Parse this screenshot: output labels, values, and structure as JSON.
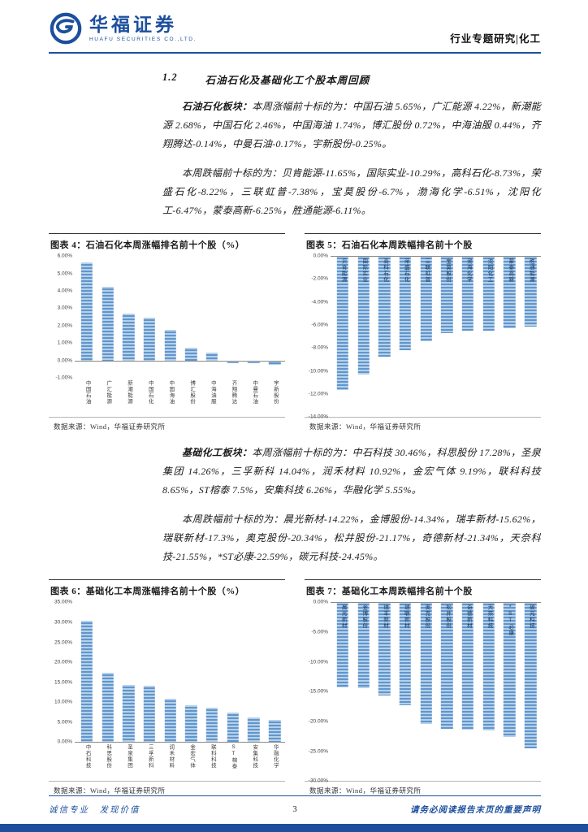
{
  "colors": {
    "brand_blue": "#1d4f9e",
    "bar_light": "#b7d0e8",
    "bar_dark": "#6096cd"
  },
  "header": {
    "brand_cn": "华福证券",
    "brand_en": "HUAFU SECURITIES CO.,LTD.",
    "doc_type": "行业专题研究|化工"
  },
  "section": {
    "number": "1.2",
    "title": "石油石化及基础化工个股本周回顾"
  },
  "paragraphs": {
    "p1_lead": "石油石化板块：",
    "p1_text": "本周涨幅前十标的为：中国石油 5.65%，广汇能源 4.22%，新潮能源 2.68%，中国石化 2.46%，中国海油 1.74%，博汇股份 0.72%，中海油服 0.44%，齐翔腾达-0.14%，中曼石油-0.17%，宇新股份-0.25%。",
    "p2_text": "本周跌幅前十标的为：贝肯能源-11.65%，国际实业-10.29%，高科石化-8.73%，荣盛石化-8.22%，三联虹普-7.38%，宝莫股份-6.7%，渤海化学-6.51%，沈阳化工-6.47%，蒙泰高新-6.25%，胜通能源-6.11%。",
    "p3_lead": "基础化工板块：",
    "p3_text": "本周涨幅前十标的为：中石科技 30.46%，科思股份 17.28%，圣泉集团 14.26%，三孚新科 14.04%，润禾材料 10.92%，金宏气体 9.19%，联科科技 8.65%，ST榕泰 7.5%，安集科技 6.26%，华融化学 5.55%。",
    "p4_text": "本周跌幅前十标的为：晨光新材-14.22%，金博股份-14.34%，瑞丰新材-15.62%，瑞联新材-17.3%，奥克股份-20.34%，松井股份-21.17%，奇德新材-21.34%，天奈科技-21.55%，*ST必康-22.59%，碳元科技-24.45%。"
  },
  "figures": [
    {
      "title": "图表 4：石油石化本周涨幅排名前十个股（%）",
      "source": "数据来源：Wind，华福证券研究所"
    },
    {
      "title": "图表 5：石油石化本周跌幅排名前十个股",
      "source": "数据来源：Wind，华福证券研究所"
    },
    {
      "title": "图表 6：基础化工本周涨幅排名前十个股（%）",
      "source": "数据来源：Wind，华福证券研究所"
    },
    {
      "title": "图表 7：基础化工本周跌幅排名前十个股",
      "source": "数据来源：Wind，华福证券研究所"
    }
  ],
  "chart_data": [
    {
      "type": "bar",
      "title": "石油石化本周涨幅排名前十个股（%）",
      "categories": [
        "中国石油",
        "广汇能源",
        "新潮能源",
        "中国石化",
        "中国海油",
        "博汇股份",
        "中海油服",
        "齐翔腾达",
        "中曼石油",
        "宇新股份"
      ],
      "values": [
        5.65,
        4.22,
        2.68,
        2.46,
        1.74,
        0.72,
        0.44,
        -0.14,
        -0.17,
        -0.25
      ],
      "xlabel": "",
      "ylabel": "",
      "ylim": [
        -1,
        6
      ],
      "ytick_labels": [
        "6.00%",
        "5.00%",
        "4.00%",
        "3.00%",
        "2.00%",
        "1.00%",
        "0.00%",
        "-1.00%"
      ],
      "grid": false,
      "legend": "none"
    },
    {
      "type": "bar",
      "title": "石油石化本周跌幅排名前十个股",
      "categories": [
        "贝肯能源",
        "国际实业",
        "高科石化",
        "荣盛石化",
        "三联虹普",
        "宝莫股份",
        "渤海化学",
        "沈阳化工",
        "蒙泰高新",
        "胜通能源"
      ],
      "values": [
        -11.65,
        -10.29,
        -8.73,
        -8.22,
        -7.38,
        -6.7,
        -6.51,
        -6.47,
        -6.25,
        -6.11
      ],
      "xlabel": "",
      "ylabel": "",
      "ylim": [
        -14,
        0
      ],
      "ytick_labels": [
        "0.00%",
        "-2.00%",
        "-4.00%",
        "-6.00%",
        "-8.00%",
        "-10.00%",
        "-12.00%",
        "-14.00%"
      ],
      "grid": false,
      "legend": "none"
    },
    {
      "type": "bar",
      "title": "基础化工本周涨幅排名前十个股（%）",
      "categories": [
        "中石科技",
        "科思股份",
        "圣泉集团",
        "三孚新科",
        "润禾材料",
        "金宏气体",
        "联科科技",
        "ST榕泰",
        "安集科技",
        "华融化学"
      ],
      "values": [
        30.46,
        17.28,
        14.26,
        14.04,
        10.92,
        9.19,
        8.65,
        7.5,
        6.26,
        5.55
      ],
      "xlabel": "",
      "ylabel": "",
      "ylim": [
        0,
        35
      ],
      "ytick_labels": [
        "35.00%",
        "30.00%",
        "25.00%",
        "20.00%",
        "15.00%",
        "10.00%",
        "5.00%",
        "0.00%"
      ],
      "grid": false,
      "legend": "none"
    },
    {
      "type": "bar",
      "title": "基础化工本周跌幅排名前十个股",
      "categories": [
        "晨光新材",
        "金博股份",
        "瑞丰新材",
        "瑞联新材",
        "奥克股份",
        "松井股份",
        "奇德新材",
        "天奈科技",
        "*ST必康",
        "碳元科技"
      ],
      "values": [
        -14.22,
        -14.34,
        -15.62,
        -17.3,
        -20.34,
        -21.17,
        -21.34,
        -21.55,
        -22.59,
        -24.45
      ],
      "xlabel": "",
      "ylabel": "",
      "ylim": [
        -30,
        0
      ],
      "ytick_labels": [
        "0.00%",
        "-5.00%",
        "-10.00%",
        "-15.00%",
        "-20.00%",
        "-25.00%",
        "-30.00%"
      ],
      "grid": false,
      "legend": "none"
    }
  ],
  "footer": {
    "motto": "诚信专业　发现价值",
    "page_number": "3",
    "disclaimer": "请务必阅读报告末页的重要声明"
  }
}
